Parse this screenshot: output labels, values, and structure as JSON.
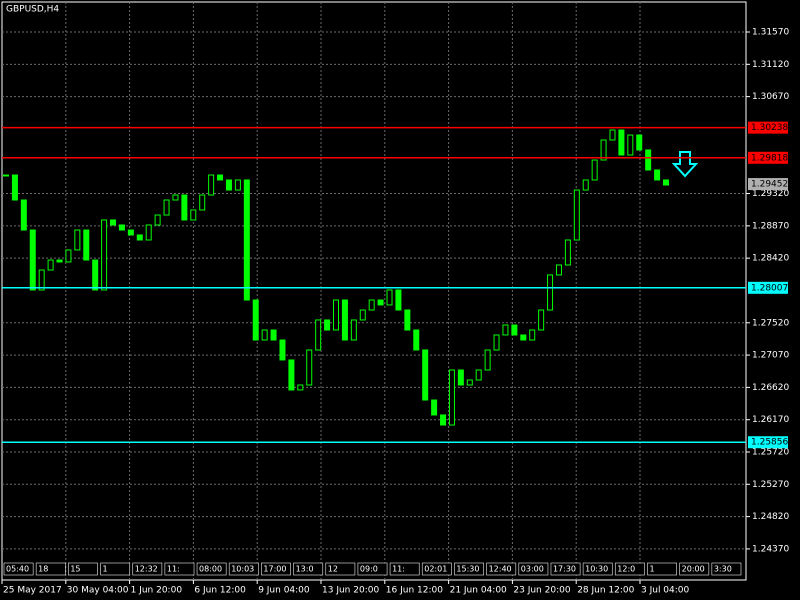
{
  "chart_data": {
    "type": "candlestick",
    "title": "GBPUSD,H4",
    "series": [
      {
        "name": "GBPUSD",
        "color": "#00ff00",
        "values": [
          1.29578,
          1.2923,
          1.28812,
          1.27977,
          1.28255,
          1.28394,
          1.28367,
          1.28534,
          1.28812,
          1.28394,
          1.27977,
          1.28952,
          1.28882,
          1.28812,
          1.28743,
          1.28673,
          1.28882,
          1.29021,
          1.2923,
          1.293,
          1.28952,
          1.29091,
          1.293,
          1.29578,
          1.29509,
          1.29369,
          1.29509,
          1.27837,
          1.2728,
          1.27419,
          1.2728,
          1.27002,
          1.26584,
          1.26653,
          1.27141,
          1.27559,
          1.27419,
          1.27837,
          1.2728,
          1.27559,
          1.27698,
          1.27837,
          1.27768,
          1.27977,
          1.27698,
          1.27419,
          1.27141,
          1.26444,
          1.26236,
          1.26096,
          1.26862,
          1.26653,
          1.26723,
          1.26862,
          1.27141,
          1.2735,
          1.27489,
          1.2735,
          1.2728,
          1.27419,
          1.27698,
          1.28186,
          1.28325,
          1.28673,
          1.29369,
          1.29509,
          1.29787,
          1.30066,
          1.30205,
          1.29857,
          1.30135,
          1.29927,
          1.29648,
          1.29509,
          1.29439
        ]
      }
    ],
    "ylim": [
      1.23937,
      1.31988
    ],
    "yticks": [
      {
        "value": 1.3157,
        "label": "1.31570"
      },
      {
        "value": 1.3112,
        "label": "1.31120"
      },
      {
        "value": 1.3067,
        "label": "1.30670"
      },
      {
        "value": 1.2932,
        "label": "1.29320"
      },
      {
        "value": 1.2887,
        "label": "1.28870"
      },
      {
        "value": 1.2842,
        "label": "1.28420"
      },
      {
        "value": 1.2752,
        "label": "1.27520"
      },
      {
        "value": 1.2707,
        "label": "1.27070"
      },
      {
        "value": 1.2662,
        "label": "1.26620"
      },
      {
        "value": 1.2617,
        "label": "1.26170"
      },
      {
        "value": 1.2572,
        "label": "1.25720"
      },
      {
        "value": 1.2527,
        "label": "1.25270"
      },
      {
        "value": 1.2482,
        "label": "1.24820"
      },
      {
        "value": 1.2437,
        "label": "1.24370"
      }
    ],
    "grid": true,
    "levels": [
      {
        "value": 1.30238,
        "color": "#ff0000"
      },
      {
        "value": 1.29818,
        "color": "#ff0000"
      },
      {
        "value": 1.28007,
        "color": "#00ffff"
      },
      {
        "value": 1.25856,
        "color": "#00ffff"
      }
    ],
    "current_price": 1.29452,
    "x_labels": [
      "25 May 2017",
      "30 May 04:00",
      "1 Jun 20:00",
      "6 Jun 12:00",
      "9 Jun 04:00",
      "13 Jun 20:00",
      "16 Jun 12:00",
      "21 Jun 04:00",
      "23 Jun 20:00",
      "28 Jun 12:00",
      "3 Jul 04:00"
    ],
    "time_boxes": [
      "05:40",
      "18",
      "15",
      "1",
      "12:32",
      "11:",
      "08:00",
      "10:03",
      "17:00",
      "13:0",
      "12",
      "09:0",
      "11:",
      "02:01",
      "15:30",
      "12:40",
      "03:00",
      "17:30",
      "10:30",
      "12:0",
      "1",
      "20:00",
      "3:30"
    ]
  }
}
